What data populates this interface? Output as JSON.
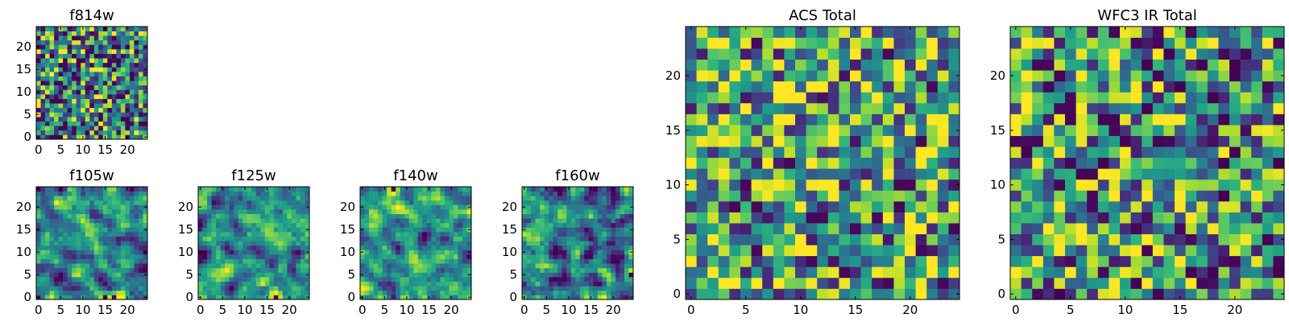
{
  "figure_title": "",
  "colormap": {
    "name": "viridis",
    "stops": [
      "#440154",
      "#482878",
      "#3e4989",
      "#31688e",
      "#26828e",
      "#1f9e89",
      "#35b779",
      "#6ece58",
      "#b5de2b",
      "#fde725"
    ]
  },
  "chart_data": [
    {
      "id": "f814w",
      "type": "heatmap",
      "title": "f814w",
      "shape": [
        25,
        25
      ],
      "xlim": [
        -0.5,
        24.5
      ],
      "ylim": [
        -0.5,
        24.5
      ],
      "xticks": [
        0,
        5,
        10,
        15,
        20
      ],
      "yticks": [
        0,
        5,
        10,
        15,
        20
      ],
      "xticklabels": [
        "0",
        "5",
        "10",
        "15",
        "20"
      ],
      "yticklabels": [
        "0",
        "5",
        "10",
        "15",
        "20"
      ],
      "value_range": [
        0,
        1
      ],
      "seed": 814,
      "smooth": 0,
      "bias": 0.5
    },
    {
      "id": "f105w",
      "type": "heatmap",
      "title": "f105w",
      "shape": [
        25,
        25
      ],
      "xlim": [
        -0.5,
        24.5
      ],
      "ylim": [
        -0.5,
        24.5
      ],
      "xticks": [
        0,
        5,
        10,
        15,
        20
      ],
      "yticks": [
        0,
        5,
        10,
        15,
        20
      ],
      "xticklabels": [
        "0",
        "5",
        "10",
        "15",
        "20"
      ],
      "yticklabels": [
        "0",
        "5",
        "10",
        "15",
        "20"
      ],
      "value_range": [
        0,
        1
      ],
      "seed": 105,
      "smooth": 1,
      "bias": 0.5
    },
    {
      "id": "f125w",
      "type": "heatmap",
      "title": "f125w",
      "shape": [
        25,
        25
      ],
      "xlim": [
        -0.5,
        24.5
      ],
      "ylim": [
        -0.5,
        24.5
      ],
      "xticks": [
        0,
        5,
        10,
        15,
        20
      ],
      "yticks": [
        0,
        5,
        10,
        15,
        20
      ],
      "xticklabels": [
        "0",
        "5",
        "10",
        "15",
        "20"
      ],
      "yticklabels": [
        "0",
        "5",
        "10",
        "15",
        "20"
      ],
      "value_range": [
        0,
        1
      ],
      "seed": 125,
      "smooth": 1,
      "bias": 0.55
    },
    {
      "id": "f140w",
      "type": "heatmap",
      "title": "f140w",
      "shape": [
        25,
        25
      ],
      "xlim": [
        -0.5,
        24.5
      ],
      "ylim": [
        -0.5,
        24.5
      ],
      "xticks": [
        0,
        5,
        10,
        15,
        20
      ],
      "yticks": [
        0,
        5,
        10,
        15,
        20
      ],
      "xticklabels": [
        "0",
        "5",
        "10",
        "15",
        "20"
      ],
      "yticklabels": [
        "0",
        "5",
        "10",
        "15",
        "20"
      ],
      "value_range": [
        0,
        1
      ],
      "seed": 140,
      "smooth": 1,
      "bias": 0.55
    },
    {
      "id": "f160w",
      "type": "heatmap",
      "title": "f160w",
      "shape": [
        25,
        25
      ],
      "xlim": [
        -0.5,
        24.5
      ],
      "ylim": [
        -0.5,
        24.5
      ],
      "xticks": [
        0,
        5,
        10,
        15,
        20
      ],
      "yticks": [
        0,
        5,
        10,
        15,
        20
      ],
      "xticklabels": [
        "0",
        "5",
        "10",
        "15",
        "20"
      ],
      "yticklabels": [
        "0",
        "5",
        "10",
        "15",
        "20"
      ],
      "value_range": [
        0,
        1
      ],
      "seed": 160,
      "smooth": 1,
      "bias": 0.5
    },
    {
      "id": "acs-total",
      "type": "heatmap",
      "title": "ACS Total",
      "shape": [
        25,
        25
      ],
      "xlim": [
        -0.5,
        24.5
      ],
      "ylim": [
        -0.5,
        24.5
      ],
      "xticks": [
        0,
        5,
        10,
        15,
        20
      ],
      "yticks": [
        0,
        5,
        10,
        15,
        20
      ],
      "xticklabels": [
        "0",
        "5",
        "10",
        "15",
        "20"
      ],
      "yticklabels": [
        "0",
        "5",
        "10",
        "15",
        "20"
      ],
      "value_range": [
        0,
        1
      ],
      "seed": 2001,
      "smooth": 0,
      "bias": 0.62
    },
    {
      "id": "wfc3-ir-total",
      "type": "heatmap",
      "title": "WFC3 IR Total",
      "shape": [
        25,
        25
      ],
      "xlim": [
        -0.5,
        24.5
      ],
      "ylim": [
        -0.5,
        24.5
      ],
      "xticks": [
        0,
        5,
        10,
        15,
        20
      ],
      "yticks": [
        0,
        5,
        10,
        15,
        20
      ],
      "xticklabels": [
        "0",
        "5",
        "10",
        "15",
        "20"
      ],
      "yticklabels": [
        "0",
        "5",
        "10",
        "15",
        "20"
      ],
      "value_range": [
        0,
        1
      ],
      "seed": 3001,
      "smooth": 0,
      "bias": 0.55
    }
  ]
}
